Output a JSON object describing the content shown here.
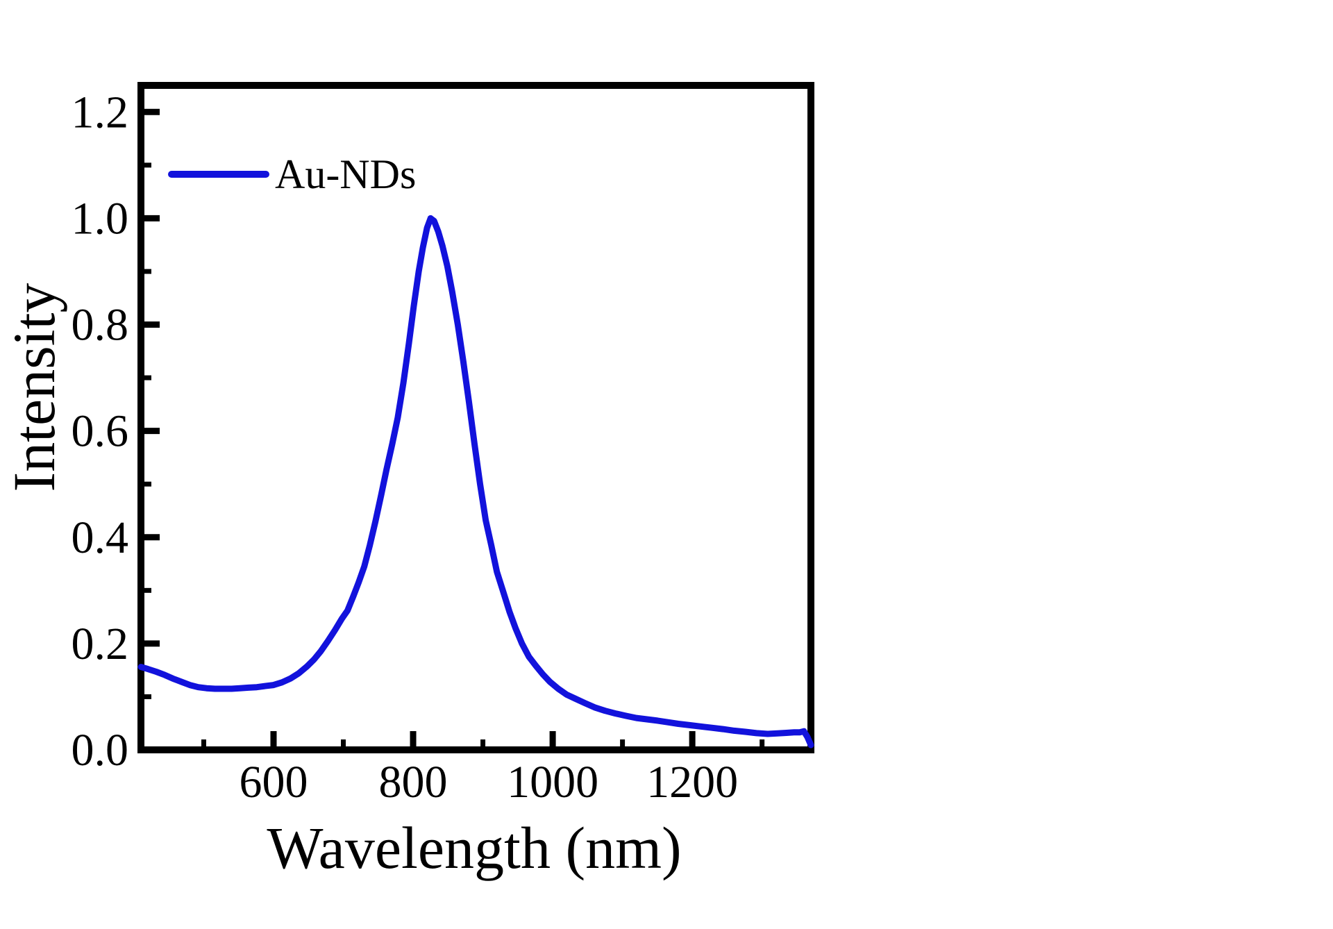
{
  "chart_data": {
    "type": "line",
    "xlabel": "Wavelength (nm)",
    "ylabel": "Intensity",
    "xlim": [
      410,
      1370
    ],
    "ylim": [
      0,
      1.25
    ],
    "grid": false,
    "background": "#ffffff",
    "axis_color": "#000000",
    "x_major_ticks": [
      600,
      800,
      1000,
      1200
    ],
    "x_tick_labels": [
      "600",
      "800",
      "1000",
      "1200"
    ],
    "x_minor_ticks": [
      500,
      700,
      900,
      1100,
      1300
    ],
    "y_major_ticks": [
      0.0,
      0.2,
      0.4,
      0.6,
      0.8,
      1.0,
      1.2
    ],
    "y_tick_labels": [
      "0.0",
      "0.2",
      "0.4",
      "0.6",
      "0.8",
      "1.0",
      "1.2"
    ],
    "y_minor_ticks": [
      0.1,
      0.3,
      0.5,
      0.7,
      0.9,
      1.1
    ],
    "legend": {
      "position": "upper-left-inside",
      "entries": [
        {
          "label": "Au-NDs",
          "color": "#1212dc"
        }
      ]
    },
    "series": [
      {
        "name": "Au-NDs",
        "color": "#1212dc",
        "line_width": 9,
        "x": [
          410,
          420,
          432,
          444,
          456,
          468,
          480,
          492,
          504,
          516,
          528,
          540,
          552,
          564,
          576,
          588,
          600,
          612,
          624,
          636,
          648,
          658,
          668,
          678,
          688,
          698,
          706,
          714,
          722,
          730,
          738,
          746,
          754,
          762,
          770,
          778,
          786,
          794,
          801,
          808,
          814,
          820,
          825,
          830,
          836,
          842,
          849,
          856,
          864,
          872,
          880,
          888,
          896,
          904,
          912,
          920,
          929,
          938,
          947,
          956,
          966,
          976,
          986,
          996,
          1008,
          1020,
          1033,
          1046,
          1060,
          1075,
          1090,
          1105,
          1120,
          1135,
          1150,
          1165,
          1180,
          1196,
          1212,
          1228,
          1244,
          1260,
          1276,
          1292,
          1308,
          1322,
          1335,
          1346,
          1354,
          1360,
          1365,
          1370
        ],
        "y": [
          0.156,
          0.152,
          0.147,
          0.141,
          0.134,
          0.128,
          0.122,
          0.118,
          0.116,
          0.115,
          0.115,
          0.115,
          0.116,
          0.117,
          0.118,
          0.12,
          0.122,
          0.127,
          0.134,
          0.144,
          0.157,
          0.17,
          0.186,
          0.205,
          0.225,
          0.247,
          0.262,
          0.288,
          0.315,
          0.345,
          0.385,
          0.43,
          0.478,
          0.528,
          0.575,
          0.625,
          0.69,
          0.765,
          0.835,
          0.9,
          0.945,
          0.982,
          1.0,
          0.995,
          0.975,
          0.948,
          0.91,
          0.862,
          0.8,
          0.73,
          0.655,
          0.575,
          0.5,
          0.432,
          0.385,
          0.335,
          0.298,
          0.26,
          0.228,
          0.2,
          0.175,
          0.158,
          0.142,
          0.128,
          0.115,
          0.104,
          0.096,
          0.088,
          0.08,
          0.0735,
          0.0685,
          0.064,
          0.06,
          0.0575,
          0.055,
          0.052,
          0.049,
          0.0465,
          0.044,
          0.0415,
          0.039,
          0.036,
          0.034,
          0.0315,
          0.03,
          0.031,
          0.032,
          0.033,
          0.033,
          0.035,
          0.024,
          0.009
        ]
      }
    ]
  }
}
